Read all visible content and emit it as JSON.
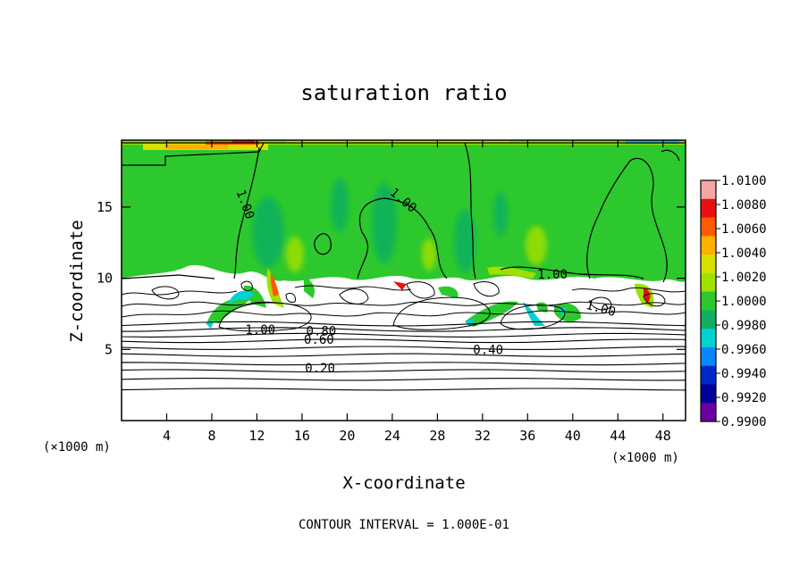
{
  "chart_data": {
    "type": "heatmap",
    "title": "saturation ratio",
    "xlabel": "X-coordinate",
    "ylabel": "Z-coordinate",
    "x_unit_left": "(×1000 m)",
    "x_unit_right": "(×1000 m)",
    "x_ticks": [
      "4",
      "8",
      "12",
      "16",
      "20",
      "24",
      "28",
      "32",
      "36",
      "40",
      "44",
      "48"
    ],
    "y_ticks": [
      "5",
      "10",
      "15"
    ],
    "xlim": [
      0,
      50
    ],
    "ylim": [
      0,
      19.7
    ],
    "footer": "CONTOUR INTERVAL = 1.000E-01",
    "colorbar": {
      "labels": [
        "1.0100",
        "1.0080",
        "1.0060",
        "1.0040",
        "1.0020",
        "1.0000",
        "0.9980",
        "0.9960",
        "0.9940",
        "0.9920",
        "0.9900"
      ],
      "colors": [
        "#f4a6a6",
        "#e81010",
        "#ff5a00",
        "#ffb000",
        "#d7e000",
        "#9ee000",
        "#2dc82d",
        "#10b060",
        "#00d2d2",
        "#0a87ff",
        "#0028c8",
        "#000098",
        "#6a00a0"
      ]
    },
    "contour_labels": [
      {
        "text": "1.00",
        "x": 11.0,
        "z": 15.2
      },
      {
        "text": "1.00",
        "x": 25.0,
        "z": 15.5
      },
      {
        "text": "1.00",
        "x": 38.2,
        "z": 10.3
      },
      {
        "text": "1.00",
        "x": 42.5,
        "z": 7.9
      },
      {
        "text": "1.00",
        "x": 12.3,
        "z": 6.4
      },
      {
        "text": "0.80",
        "x": 17.7,
        "z": 6.3
      },
      {
        "text": "0.60",
        "x": 17.5,
        "z": 5.7
      },
      {
        "text": "0.40",
        "x": 32.5,
        "z": 5.0
      },
      {
        "text": "0.20",
        "x": 17.6,
        "z": 3.7
      }
    ],
    "dry_layer_top_z": 10.0,
    "contour_levels_z": [
      2.2,
      2.9,
      3.5,
      4.0,
      4.6,
      5.1,
      5.6,
      6.0,
      6.4,
      6.8
    ]
  }
}
